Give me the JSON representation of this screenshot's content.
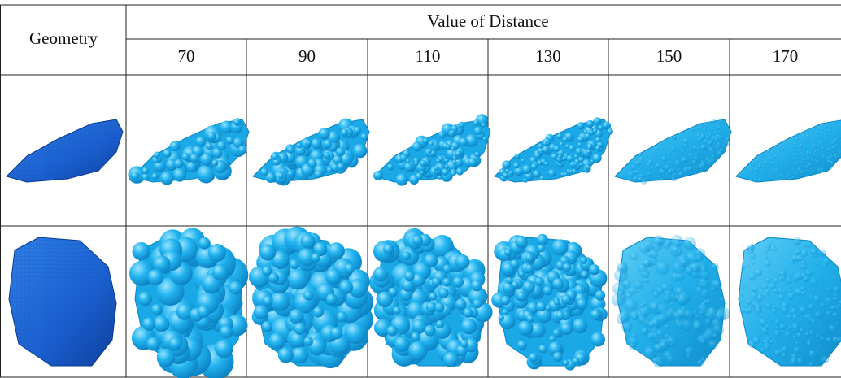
{
  "table": {
    "header": {
      "corner": "Geometry",
      "group": "Value of Distance",
      "columns": [
        70,
        90,
        110,
        130,
        150,
        170
      ]
    }
  }
}
